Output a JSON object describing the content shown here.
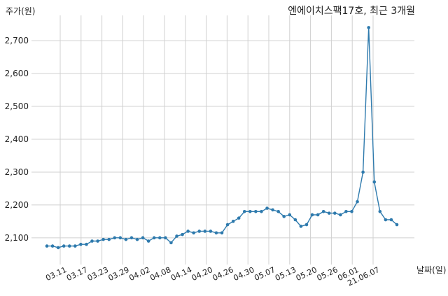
{
  "chart_data": {
    "type": "line",
    "title": "엔에이치스팩17호, 최근 3개월",
    "ylabel": "주가(원)",
    "xlabel": "날짜(일)",
    "ylim": [
      2040,
      2760
    ],
    "yticks": [
      2100,
      2200,
      2300,
      2400,
      2500,
      2600,
      2700
    ],
    "ytick_labels": [
      "2,100",
      "2,200",
      "2,300",
      "2,400",
      "2,500",
      "2,600",
      "2,700"
    ],
    "xtick_labels": [
      "03.11",
      "03.17",
      "03.23",
      "03.29",
      "04.02",
      "04.08",
      "04.14",
      "04.20",
      "04.26",
      "04.30",
      "05.07",
      "05.13",
      "05.20",
      "05.26",
      "06.01",
      "21.06.07"
    ],
    "grid": true,
    "color": "#2e7aad",
    "values": [
      2075,
      2075,
      2070,
      2075,
      2075,
      2075,
      2080,
      2080,
      2090,
      2090,
      2095,
      2095,
      2100,
      2100,
      2095,
      2100,
      2095,
      2100,
      2090,
      2100,
      2100,
      2100,
      2085,
      2105,
      2110,
      2120,
      2115,
      2120,
      2120,
      2120,
      2115,
      2115,
      2140,
      2150,
      2160,
      2180,
      2180,
      2180,
      2180,
      2190,
      2185,
      2180,
      2165,
      2170,
      2155,
      2135,
      2140,
      2170,
      2170,
      2180,
      2175,
      2175,
      2170,
      2180,
      2180,
      2210,
      2300,
      2740,
      2270,
      2180,
      2155,
      2155,
      2140
    ]
  }
}
